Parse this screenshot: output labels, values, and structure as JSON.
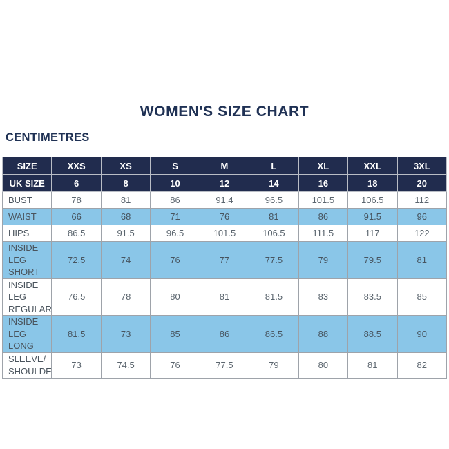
{
  "page": {
    "title": "WOMEN'S SIZE CHART",
    "subtitle": "CENTIMETRES"
  },
  "colors": {
    "heading_text": "#1f3154",
    "header_navy": "#212c4e",
    "row_blue": "#8ac6e8",
    "row_white": "#ffffff",
    "cell_text": "#5b656e",
    "grid_border": "#9ea3aa"
  },
  "chart_data": {
    "type": "table",
    "title": "WOMEN'S SIZE CHART",
    "units_label": "CENTIMETRES",
    "header": [
      "SIZE",
      "XXS",
      "XS",
      "S",
      "M",
      "L",
      "XL",
      "XXL",
      "3XL"
    ],
    "rows": [
      {
        "label": "UK SIZE",
        "style": "navy",
        "values": [
          "6",
          "8",
          "10",
          "12",
          "14",
          "16",
          "18",
          "20"
        ]
      },
      {
        "label": "BUST",
        "style": "white",
        "values": [
          "78",
          "81",
          "86",
          "91.4",
          "96.5",
          "101.5",
          "106.5",
          "112"
        ]
      },
      {
        "label": "WAIST",
        "style": "blue",
        "values": [
          "66",
          "68",
          "71",
          "76",
          "81",
          "86",
          "91.5",
          "96"
        ]
      },
      {
        "label": "HIPS",
        "style": "white",
        "values": [
          "86.5",
          "91.5",
          "96.5",
          "101.5",
          "106.5",
          "111.5",
          "117",
          "122"
        ]
      },
      {
        "label": "INSIDE LEG\nSHORT",
        "style": "blue",
        "values": [
          "72.5",
          "74",
          "76",
          "77",
          "77.5",
          "79",
          "79.5",
          "81"
        ]
      },
      {
        "label": "INSIDE LEG\nREGULAR",
        "style": "white",
        "values": [
          "76.5",
          "78",
          "80",
          "81",
          "81.5",
          "83",
          "83.5",
          "85"
        ]
      },
      {
        "label": "INSIDE LEG\nLONG",
        "style": "blue",
        "values": [
          "81.5",
          "73",
          "85",
          "86",
          "86.5",
          "88",
          "88.5",
          "90"
        ]
      },
      {
        "label": "SLEEVE/\nSHOULDER",
        "style": "white",
        "values": [
          "73",
          "74.5",
          "76",
          "77.5",
          "79",
          "80",
          "81",
          "82"
        ]
      }
    ]
  }
}
